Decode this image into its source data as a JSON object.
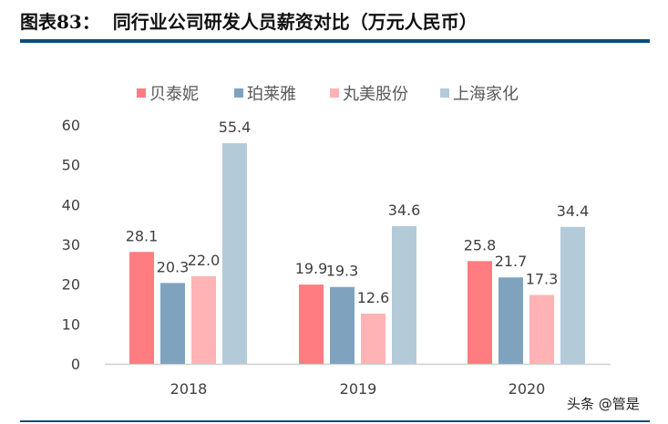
{
  "header": {
    "label": "图表83：",
    "title": "同行业公司研发人员薪资对比（万元人民币）"
  },
  "watermark": "头条 @管是",
  "chart_data": {
    "type": "bar",
    "title": "",
    "categories": [
      "2018",
      "2019",
      "2020"
    ],
    "series": [
      {
        "name": "贝泰妮",
        "color": "#ff7c80",
        "values": [
          28.1,
          19.9,
          25.8
        ]
      },
      {
        "name": "珀莱雅",
        "color": "#7fa3bf",
        "values": [
          20.3,
          19.3,
          21.7
        ]
      },
      {
        "name": "丸美股份",
        "color": "#ffb3b5",
        "values": [
          22.0,
          12.6,
          17.3
        ]
      },
      {
        "name": "上海家化",
        "color": "#b3cad9",
        "values": [
          55.4,
          34.6,
          34.4
        ]
      }
    ],
    "yticks": [
      "0",
      "10",
      "20",
      "30",
      "40",
      "50",
      "60"
    ],
    "ylim": [
      0,
      60
    ],
    "legend": "top",
    "grid": false,
    "data_labels": true
  }
}
